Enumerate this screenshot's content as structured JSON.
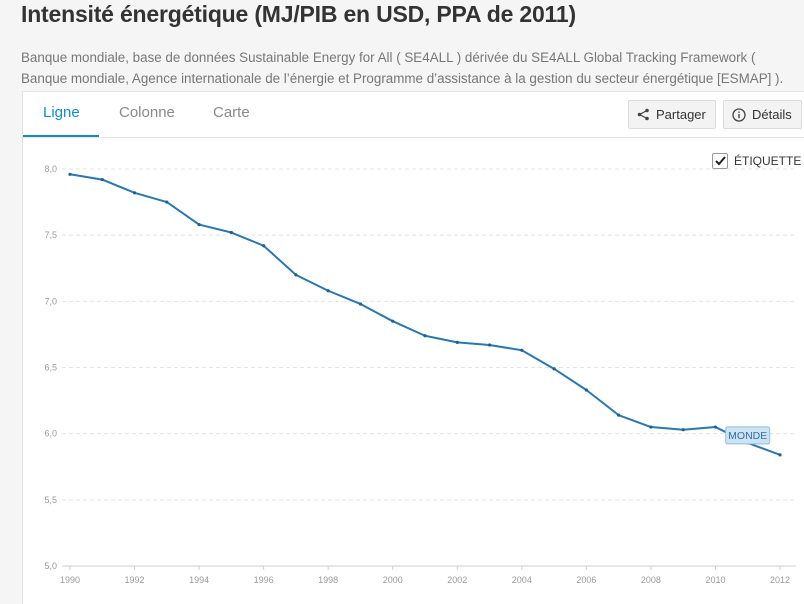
{
  "header": {
    "title": "Intensité énergétique (MJ/PIB en USD, PPA de 2011)",
    "source": "Banque mondiale, base de données Sustainable Energy for All ( SE4ALL ) dérivée du SE4ALL Global Tracking Framework ( Banque mondiale, Agence internationale de l’énergie et Programme d’assistance à la gestion du secteur énergétique [ESMAP] )."
  },
  "tabs": [
    {
      "label": "Ligne",
      "active": true
    },
    {
      "label": "Colonne",
      "active": false
    },
    {
      "label": "Carte",
      "active": false
    }
  ],
  "actions": {
    "share_label": "Partager",
    "share_icon": "share-icon",
    "details_label": "Détails",
    "details_icon": "info-icon"
  },
  "label_toggle": {
    "label": "ÉTIQUETTE",
    "checked": true
  },
  "colors": {
    "accent": "#0f8dd0",
    "line": "#2878b4",
    "series_label_bg": "#cde3f2"
  },
  "chart_data": {
    "type": "line",
    "x": [
      1990,
      1991,
      1992,
      1993,
      1994,
      1995,
      1996,
      1997,
      1998,
      1999,
      2000,
      2001,
      2002,
      2003,
      2004,
      2005,
      2006,
      2007,
      2008,
      2009,
      2010,
      2011,
      2012
    ],
    "series": [
      {
        "name": "MONDE",
        "values": [
          7.96,
          7.92,
          7.82,
          7.75,
          7.58,
          7.52,
          7.42,
          7.2,
          7.08,
          6.98,
          6.85,
          6.74,
          6.69,
          6.67,
          6.63,
          6.49,
          6.33,
          6.14,
          6.05,
          6.03,
          6.05,
          5.93,
          5.84
        ]
      }
    ],
    "xticks": [
      "1990",
      "1992",
      "1994",
      "1996",
      "1998",
      "2000",
      "2002",
      "2004",
      "2006",
      "2008",
      "2010",
      "2012"
    ],
    "yticks": [
      "5,0",
      "5,5",
      "6,0",
      "6,5",
      "7,0",
      "7,5",
      "8,0"
    ],
    "ylim": [
      5.0,
      8.0
    ],
    "xlim": [
      1990,
      2012
    ],
    "grid": true
  }
}
